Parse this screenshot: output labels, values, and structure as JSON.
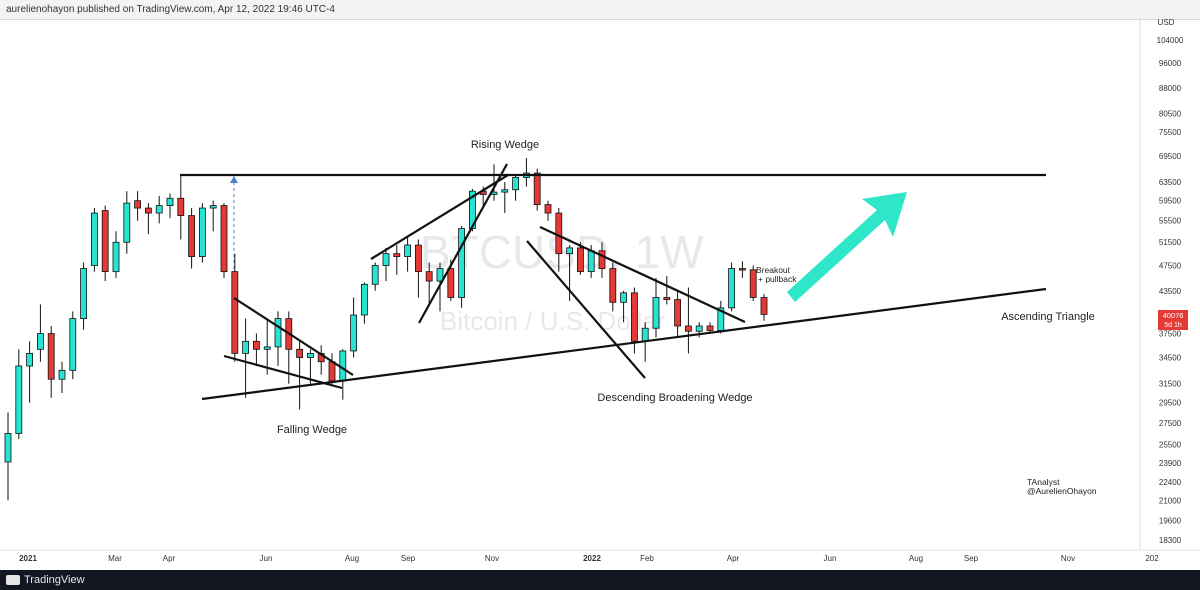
{
  "header": {
    "published": "aurelienohayon published on TradingView.com, Apr 12, 2022 19:46 UTC-4"
  },
  "footer": {
    "brand": "TradingView"
  },
  "watermark": {
    "symbol": "BTCUSD, 1W",
    "name": "Bitcoin / U.S. Dollar"
  },
  "price_label": {
    "value": "40076",
    "countdown": "5d 1h",
    "color": "#e53935"
  },
  "colors": {
    "up": "#26e4d4",
    "down": "#e53935",
    "arrow": "#2ee6c8"
  },
  "chart_data": {
    "type": "candlestick",
    "y_scale": "log",
    "currency": "USD",
    "y_ticks": [
      "104000",
      "96000",
      "88000",
      "80500",
      "75500",
      "69500",
      "63500",
      "59500",
      "55500",
      "51500",
      "47500",
      "43500",
      "40076",
      "37500",
      "34500",
      "31500",
      "29500",
      "27500",
      "25500",
      "23900",
      "22400",
      "21000",
      "19600",
      "18300"
    ],
    "x_ticks": [
      "2021",
      "Mar",
      "Apr",
      "Jun",
      "Aug",
      "Sep",
      "Nov",
      "2022",
      "Feb",
      "Apr",
      "Jun",
      "Aug",
      "Sep",
      "Nov",
      "202"
    ],
    "candles": [
      {
        "o": 24000,
        "h": 28500,
        "l": 21000,
        "c": 26500
      },
      {
        "o": 26500,
        "h": 35500,
        "l": 26000,
        "c": 33500
      },
      {
        "o": 33500,
        "h": 36500,
        "l": 29500,
        "c": 35000
      },
      {
        "o": 35500,
        "h": 41500,
        "l": 34000,
        "c": 37500
      },
      {
        "o": 37500,
        "h": 38500,
        "l": 30000,
        "c": 32000
      },
      {
        "o": 32000,
        "h": 34000,
        "l": 30500,
        "c": 33000
      },
      {
        "o": 33000,
        "h": 40500,
        "l": 32000,
        "c": 39500
      },
      {
        "o": 39500,
        "h": 48000,
        "l": 38000,
        "c": 47000
      },
      {
        "o": 47500,
        "h": 58000,
        "l": 46500,
        "c": 57000
      },
      {
        "o": 57500,
        "h": 58500,
        "l": 45000,
        "c": 46500
      },
      {
        "o": 46500,
        "h": 53500,
        "l": 45500,
        "c": 51500
      },
      {
        "o": 51500,
        "h": 61500,
        "l": 49500,
        "c": 59000
      },
      {
        "o": 59500,
        "h": 61500,
        "l": 55500,
        "c": 58000
      },
      {
        "o": 58000,
        "h": 59000,
        "l": 53000,
        "c": 57000
      },
      {
        "o": 57000,
        "h": 60500,
        "l": 55000,
        "c": 58500
      },
      {
        "o": 58500,
        "h": 61000,
        "l": 56000,
        "c": 60000
      },
      {
        "o": 60000,
        "h": 64800,
        "l": 52000,
        "c": 56500
      },
      {
        "o": 56500,
        "h": 58000,
        "l": 47000,
        "c": 49000
      },
      {
        "o": 49000,
        "h": 59000,
        "l": 48000,
        "c": 58000
      },
      {
        "o": 58000,
        "h": 59500,
        "l": 53500,
        "c": 58500
      },
      {
        "o": 58500,
        "h": 59000,
        "l": 45500,
        "c": 46500
      },
      {
        "o": 46500,
        "h": 49500,
        "l": 34000,
        "c": 35000
      },
      {
        "o": 35000,
        "h": 39500,
        "l": 30000,
        "c": 36500
      },
      {
        "o": 36500,
        "h": 37500,
        "l": 33500,
        "c": 35500
      },
      {
        "o": 35500,
        "h": 39500,
        "l": 32500,
        "c": 35800
      },
      {
        "o": 35800,
        "h": 40500,
        "l": 33500,
        "c": 39500
      },
      {
        "o": 39500,
        "h": 40500,
        "l": 31500,
        "c": 35500
      },
      {
        "o": 35500,
        "h": 36500,
        "l": 28800,
        "c": 34500
      },
      {
        "o": 34500,
        "h": 35500,
        "l": 31500,
        "c": 35000
      },
      {
        "o": 35000,
        "h": 36000,
        "l": 32500,
        "c": 34000
      },
      {
        "o": 34000,
        "h": 35000,
        "l": 31500,
        "c": 31800
      },
      {
        "o": 31800,
        "h": 35500,
        "l": 29800,
        "c": 35300
      },
      {
        "o": 35300,
        "h": 42500,
        "l": 34500,
        "c": 40000
      },
      {
        "o": 40000,
        "h": 44800,
        "l": 38800,
        "c": 44500
      },
      {
        "o": 44500,
        "h": 48000,
        "l": 43500,
        "c": 47500
      },
      {
        "o": 47500,
        "h": 50500,
        "l": 45000,
        "c": 49500
      },
      {
        "o": 49500,
        "h": 51000,
        "l": 46000,
        "c": 49000
      },
      {
        "o": 49000,
        "h": 52500,
        "l": 46500,
        "c": 51000
      },
      {
        "o": 51000,
        "h": 52000,
        "l": 42500,
        "c": 46500
      },
      {
        "o": 46500,
        "h": 48000,
        "l": 41500,
        "c": 45000
      },
      {
        "o": 45000,
        "h": 48000,
        "l": 40500,
        "c": 47000
      },
      {
        "o": 47000,
        "h": 48500,
        "l": 42000,
        "c": 42500
      },
      {
        "o": 42500,
        "h": 54500,
        "l": 41000,
        "c": 54000
      },
      {
        "o": 54000,
        "h": 62000,
        "l": 53500,
        "c": 61500
      },
      {
        "o": 61500,
        "h": 62500,
        "l": 58000,
        "c": 60800
      },
      {
        "o": 60800,
        "h": 67500,
        "l": 59500,
        "c": 61300
      },
      {
        "o": 61300,
        "h": 63500,
        "l": 57000,
        "c": 61800
      },
      {
        "o": 61800,
        "h": 65000,
        "l": 59500,
        "c": 64500
      },
      {
        "o": 64500,
        "h": 69000,
        "l": 62500,
        "c": 65500
      },
      {
        "o": 65500,
        "h": 66500,
        "l": 57500,
        "c": 58700
      },
      {
        "o": 58700,
        "h": 59500,
        "l": 55500,
        "c": 57000
      },
      {
        "o": 57000,
        "h": 58000,
        "l": 46500,
        "c": 49500
      },
      {
        "o": 49500,
        "h": 51000,
        "l": 42000,
        "c": 50500
      },
      {
        "o": 50500,
        "h": 51500,
        "l": 46000,
        "c": 46500
      },
      {
        "o": 46500,
        "h": 51000,
        "l": 45500,
        "c": 50000
      },
      {
        "o": 50000,
        "h": 51500,
        "l": 45500,
        "c": 47000
      },
      {
        "o": 47000,
        "h": 48000,
        "l": 40500,
        "c": 41800
      },
      {
        "o": 41800,
        "h": 43500,
        "l": 39000,
        "c": 43200
      },
      {
        "o": 43200,
        "h": 44000,
        "l": 35000,
        "c": 36500
      },
      {
        "o": 36500,
        "h": 39000,
        "l": 34000,
        "c": 38200
      },
      {
        "o": 38200,
        "h": 45500,
        "l": 37000,
        "c": 42500
      },
      {
        "o": 42500,
        "h": 45800,
        "l": 41500,
        "c": 42200
      },
      {
        "o": 42200,
        "h": 43500,
        "l": 37000,
        "c": 38500
      },
      {
        "o": 38500,
        "h": 44000,
        "l": 35000,
        "c": 37800
      },
      {
        "o": 37800,
        "h": 39000,
        "l": 37000,
        "c": 38500
      },
      {
        "o": 38500,
        "h": 39000,
        "l": 37500,
        "c": 37900
      },
      {
        "o": 37900,
        "h": 42000,
        "l": 37500,
        "c": 41000
      },
      {
        "o": 41000,
        "h": 48000,
        "l": 40500,
        "c": 47000
      },
      {
        "o": 47000,
        "h": 48200,
        "l": 45500,
        "c": 46800
      },
      {
        "o": 46800,
        "h": 47500,
        "l": 42000,
        "c": 42500
      },
      {
        "o": 42500,
        "h": 43000,
        "l": 39200,
        "c": 40076
      }
    ],
    "annotations": [
      {
        "text": "Rising Wedge"
      },
      {
        "text": "Falling Wedge"
      },
      {
        "text": "Descending Broadening Wedge"
      },
      {
        "text": "Ascending Triangle"
      },
      {
        "text": "Breakout"
      },
      {
        "text": "+ pullback"
      },
      {
        "text": "TAnalyst"
      },
      {
        "text": "@AurelienOhayon"
      }
    ],
    "levels": {
      "resistance": 65500
    }
  }
}
